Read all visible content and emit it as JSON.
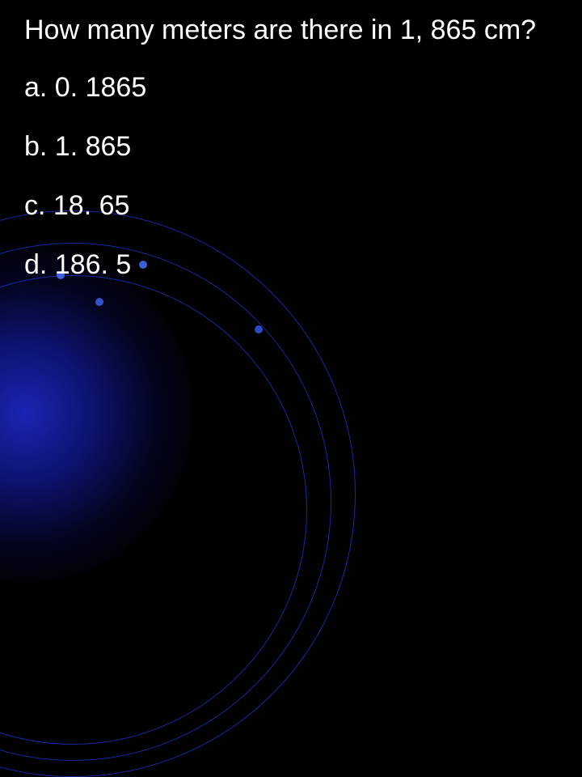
{
  "slide": {
    "background_color": "#000000",
    "text_color": "#ffffff",
    "font_size_pt": 26,
    "font_family": "Arial",
    "question": "How many meters are there in 1, 865 cm?",
    "options": [
      {
        "letter": "a",
        "text": "0. 1865"
      },
      {
        "letter": "b",
        "text": "1. 865"
      },
      {
        "letter": "c",
        "text": "18. 65"
      },
      {
        "letter": "d",
        "text": "186. 5"
      }
    ],
    "decoration": {
      "glow_color": "#1a28c8",
      "arc_color": "#1e32c8",
      "arc_count": 3,
      "dot_color": "#3a5fd9",
      "dot_count": 4
    }
  }
}
